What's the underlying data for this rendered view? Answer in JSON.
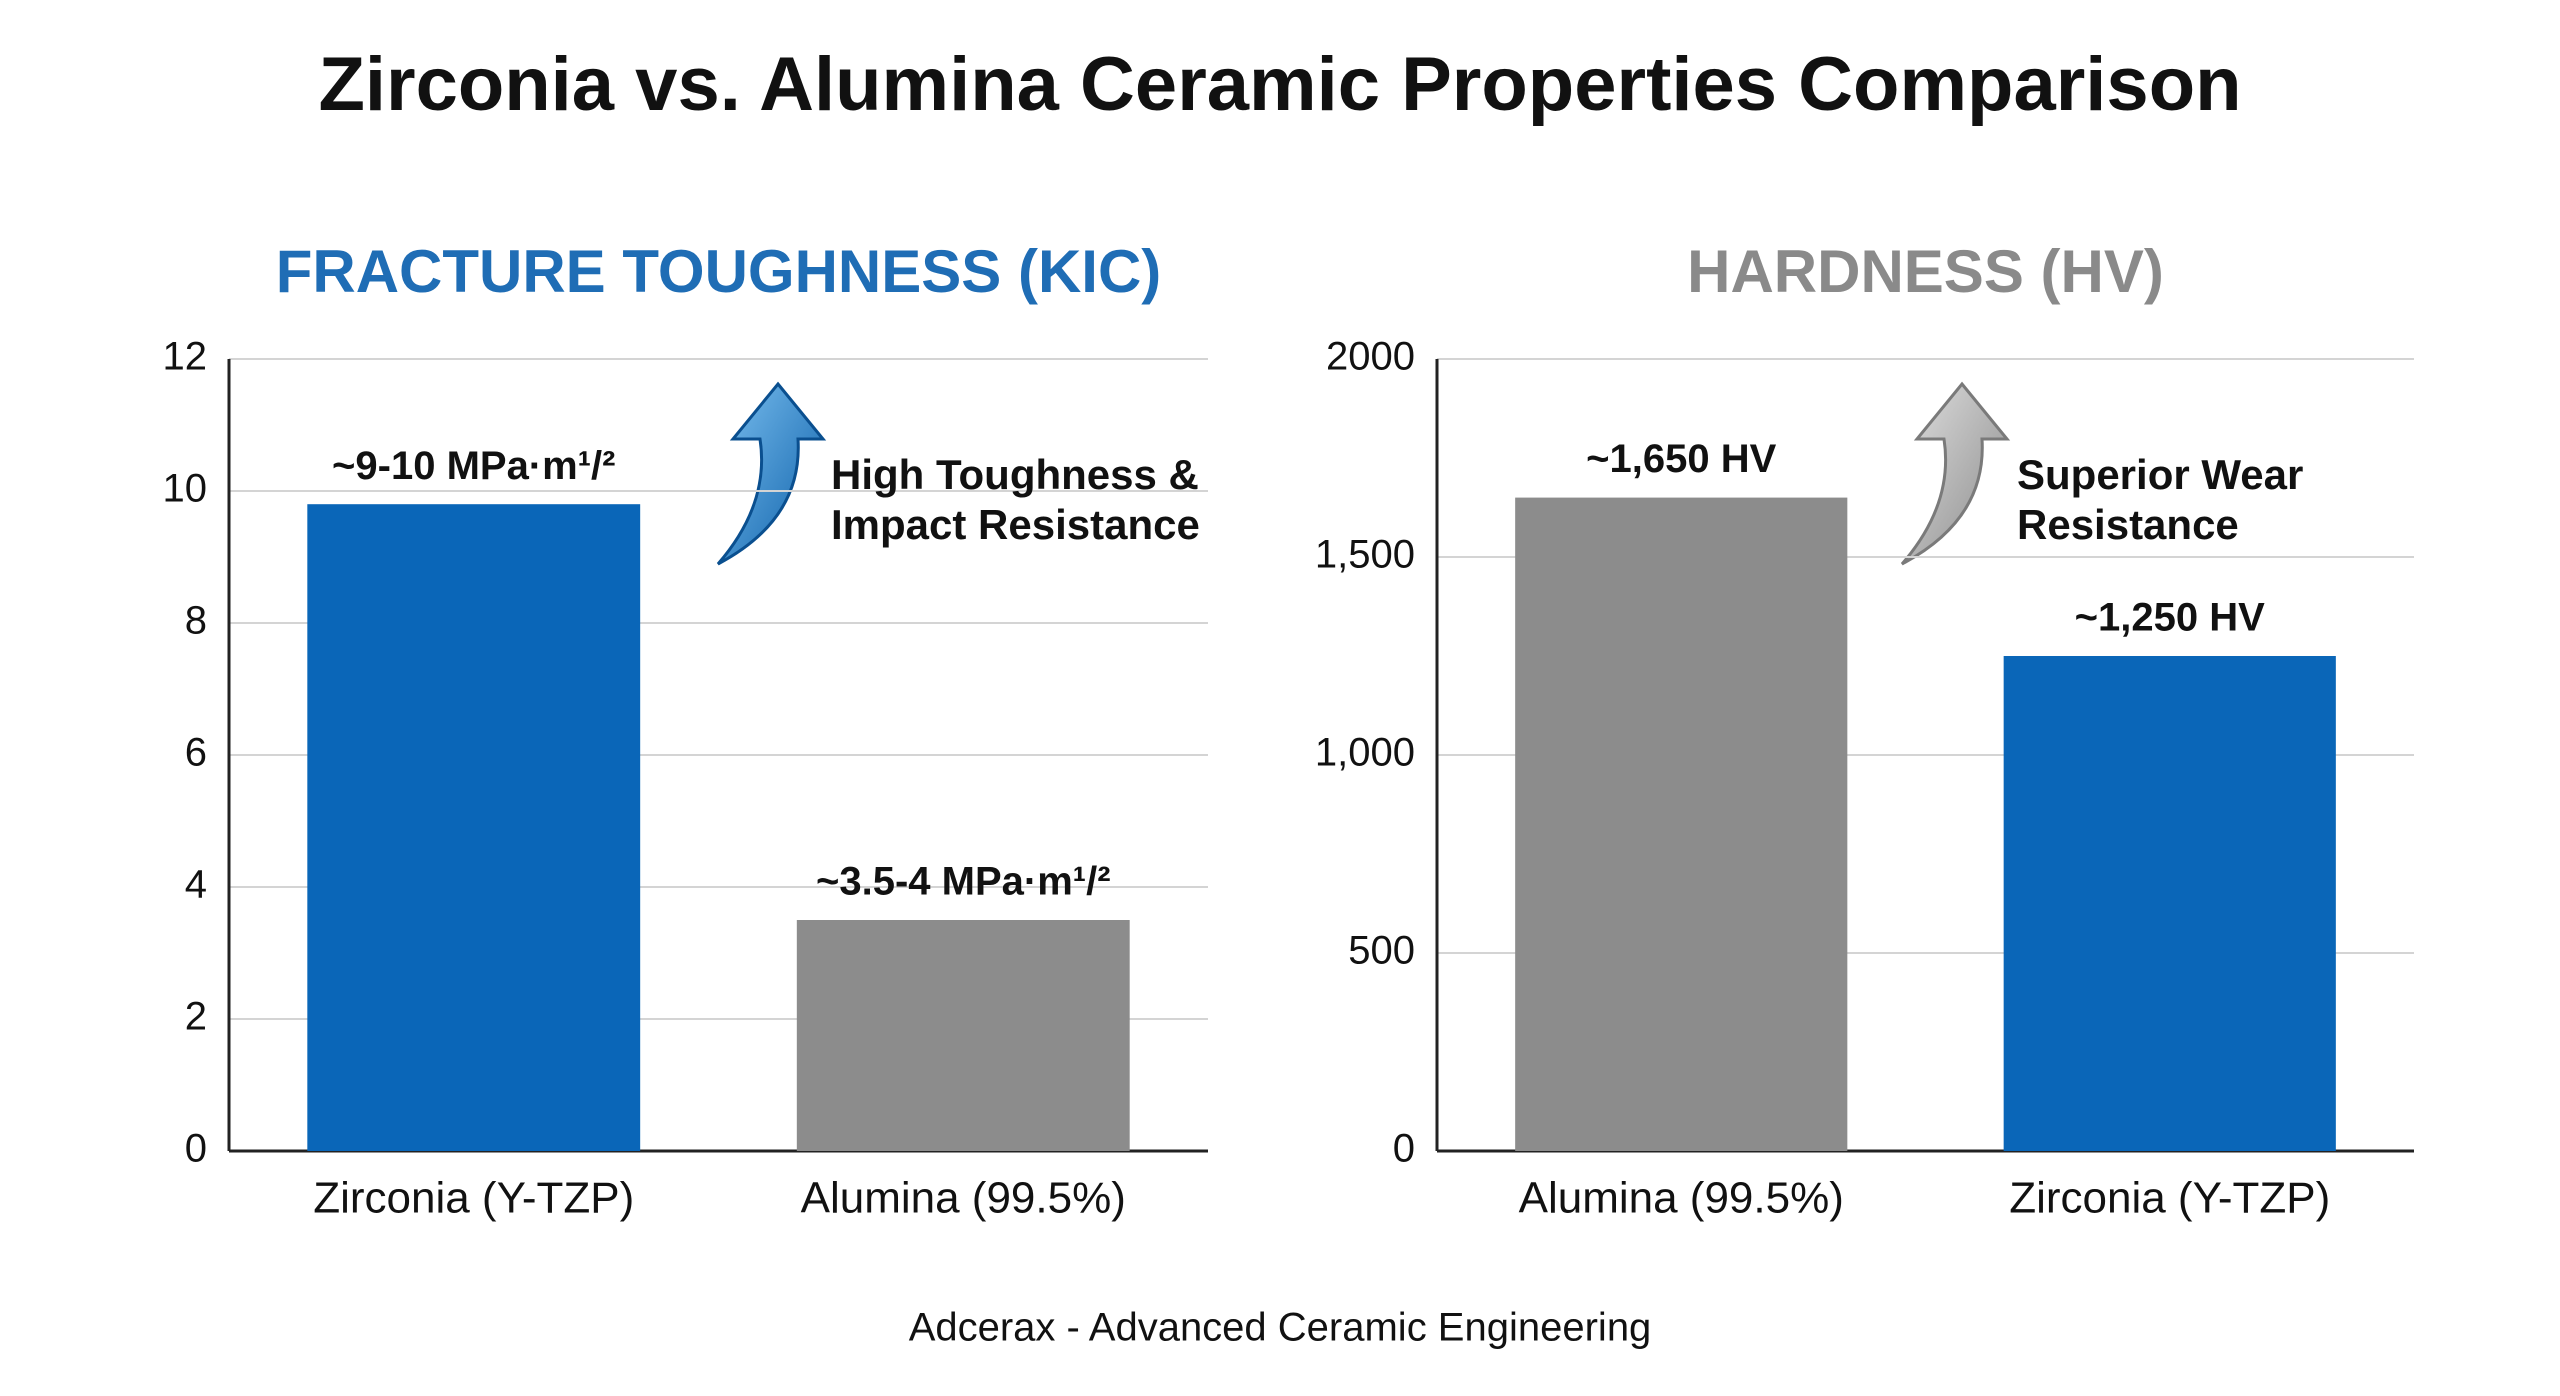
{
  "title": "Zirconia vs. Alumina Ceramic Properties Comparison",
  "footer": "Adcerax - Advanced Ceramic Engineering",
  "chart_data": [
    {
      "type": "bar",
      "title": "FRACTURE TOUGHNESS (KIC)",
      "title_color": "#1f6db5",
      "categories": [
        "Zirconia (Y-TZP)",
        "Alumina (99.5%)"
      ],
      "values": [
        9.8,
        3.5
      ],
      "value_labels": [
        "~9-10 MPa·m¹/²",
        "~3.5-4 MPa·m¹/²"
      ],
      "colors": [
        "#0a66b8",
        "#8c8c8c"
      ],
      "ylim": [
        0,
        12
      ],
      "yticks": [
        0,
        2,
        4,
        6,
        8,
        10,
        12
      ],
      "grid": true,
      "annotation": [
        "High Toughness &",
        "Impact Resistance"
      ]
    },
    {
      "type": "bar",
      "title": "HARDNESS (HV)",
      "title_color": "#8a8a8a",
      "categories": [
        "Alumina (99.5%)",
        "Zirconia (Y-TZP)"
      ],
      "values": [
        1650,
        1250
      ],
      "value_labels": [
        "~1,650 HV",
        "~1,250 HV"
      ],
      "colors": [
        "#8c8c8c",
        "#0a66b8"
      ],
      "ylim": [
        0,
        2000
      ],
      "yticks": [
        0,
        500,
        {
          "value": 1000,
          "label": "1,000"
        },
        {
          "value": 1500,
          "label": "1,500"
        },
        2000
      ],
      "grid": true,
      "annotation": [
        "Superior Wear",
        "Resistance"
      ]
    }
  ]
}
